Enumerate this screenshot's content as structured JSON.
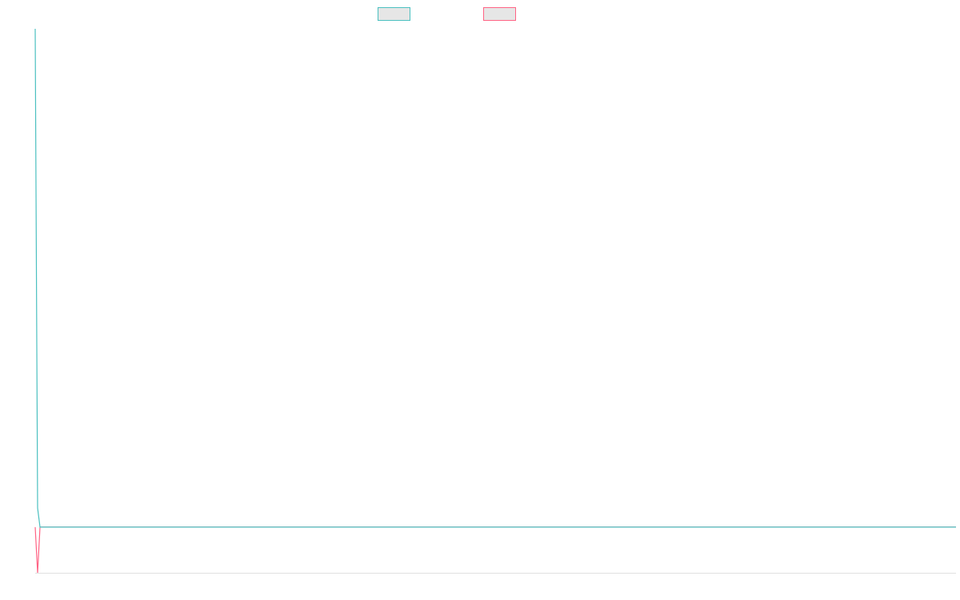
{
  "chart_data": {
    "type": "line",
    "x": [
      0,
      1,
      2,
      383
    ],
    "xlim": [
      0,
      383
    ],
    "ylim": [
      0,
      100
    ],
    "series": [
      {
        "color": "#4bc0c0",
        "values": [
          100,
          11.9,
          8.4,
          8.4
        ]
      },
      {
        "color": "#ff6384",
        "values": [
          8.4,
          0,
          8.4,
          8.4
        ]
      }
    ]
  }
}
